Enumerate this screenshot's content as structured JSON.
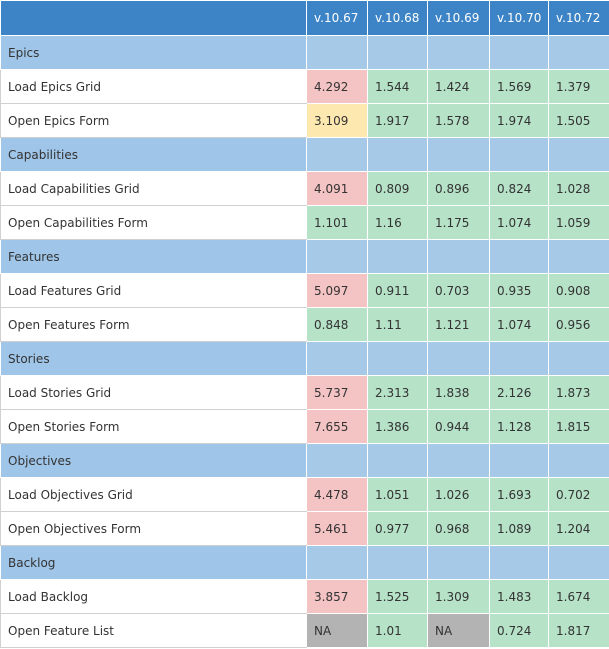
{
  "colors": {
    "header": "#3d84c6",
    "section": "#9fc5e8",
    "red": "#f4c3c3",
    "yellow": "#fde8b0",
    "green": "#b6e2c8",
    "gray": "#b3b3b3"
  },
  "header": {
    "label": "",
    "versions": [
      "v.10.67",
      "v.10.68",
      "v.10.69",
      "v.10.70",
      "v.10.72"
    ]
  },
  "sections": [
    {
      "title": "Epics",
      "rows": [
        {
          "label": "Load Epics Grid",
          "values": [
            "4.292",
            "1.544",
            "1.424",
            "1.569",
            "1.379"
          ],
          "status": [
            "red",
            "green",
            "green",
            "green",
            "green"
          ]
        },
        {
          "label": "Open Epics Form",
          "values": [
            "3.109",
            "1.917",
            "1.578",
            "1.974",
            "1.505"
          ],
          "status": [
            "yellow",
            "green",
            "green",
            "green",
            "green"
          ]
        }
      ]
    },
    {
      "title": "Capabilities",
      "rows": [
        {
          "label": "Load Capabilities Grid",
          "values": [
            "4.091",
            "0.809",
            "0.896",
            "0.824",
            "1.028"
          ],
          "status": [
            "red",
            "green",
            "green",
            "green",
            "green"
          ]
        },
        {
          "label": "Open Capabilities Form",
          "values": [
            "1.101",
            "1.16",
            "1.175",
            "1.074",
            "1.059"
          ],
          "status": [
            "green",
            "green",
            "green",
            "green",
            "green"
          ]
        }
      ]
    },
    {
      "title": "Features",
      "rows": [
        {
          "label": "Load Features Grid",
          "values": [
            "5.097",
            "0.911",
            "0.703",
            "0.935",
            "0.908"
          ],
          "status": [
            "red",
            "green",
            "green",
            "green",
            "green"
          ]
        },
        {
          "label": "Open Features Form",
          "values": [
            "0.848",
            "1.11",
            "1.121",
            "1.074",
            "0.956"
          ],
          "status": [
            "green",
            "green",
            "green",
            "green",
            "green"
          ]
        }
      ]
    },
    {
      "title": "Stories",
      "rows": [
        {
          "label": "Load Stories Grid",
          "values": [
            "5.737",
            "2.313",
            "1.838",
            "2.126",
            "1.873"
          ],
          "status": [
            "red",
            "green",
            "green",
            "green",
            "green"
          ]
        },
        {
          "label": "Open Stories Form",
          "values": [
            "7.655",
            "1.386",
            "0.944",
            "1.128",
            "1.815"
          ],
          "status": [
            "red",
            "green",
            "green",
            "green",
            "green"
          ]
        }
      ]
    },
    {
      "title": "Objectives",
      "rows": [
        {
          "label": "Load Objectives Grid",
          "values": [
            "4.478",
            "1.051",
            "1.026",
            "1.693",
            "0.702"
          ],
          "status": [
            "red",
            "green",
            "green",
            "green",
            "green"
          ]
        },
        {
          "label": "Open Objectives Form",
          "values": [
            "5.461",
            "0.977",
            "0.968",
            "1.089",
            "1.204"
          ],
          "status": [
            "red",
            "green",
            "green",
            "green",
            "green"
          ]
        }
      ]
    },
    {
      "title": "Backlog",
      "rows": [
        {
          "label": "Load Backlog",
          "values": [
            "3.857",
            "1.525",
            "1.309",
            "1.483",
            "1.674"
          ],
          "status": [
            "red",
            "green",
            "green",
            "green",
            "green"
          ]
        },
        {
          "label": "Open Feature List",
          "values": [
            "NA",
            "1.01",
            "NA",
            "0.724",
            "1.817"
          ],
          "status": [
            "gray",
            "green",
            "gray",
            "green",
            "green"
          ]
        }
      ]
    }
  ]
}
